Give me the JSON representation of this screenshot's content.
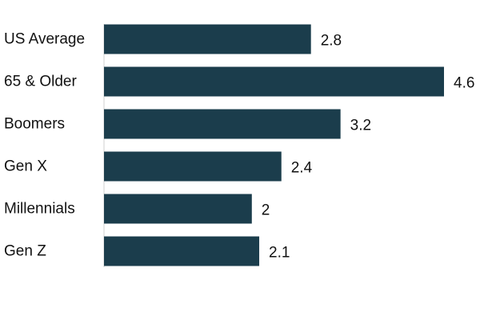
{
  "chart_data": {
    "type": "bar",
    "orientation": "horizontal",
    "categories": [
      "US Average",
      "65 & Older",
      "Boomers",
      "Gen X",
      "Millennials",
      "Gen Z"
    ],
    "values": [
      2.8,
      4.6,
      3.2,
      2.4,
      2,
      2.1
    ],
    "data_labels": [
      "2.8",
      "4.6",
      "3.2",
      "2.4",
      "2",
      "2.1"
    ],
    "title": "",
    "xlabel": "",
    "ylabel": "",
    "xlim": [
      0,
      4.6
    ],
    "grid": false,
    "legend": "none",
    "colors": {
      "bar": "#1b3d4c",
      "text": "#111111",
      "axis": "#d0d0d0"
    }
  }
}
